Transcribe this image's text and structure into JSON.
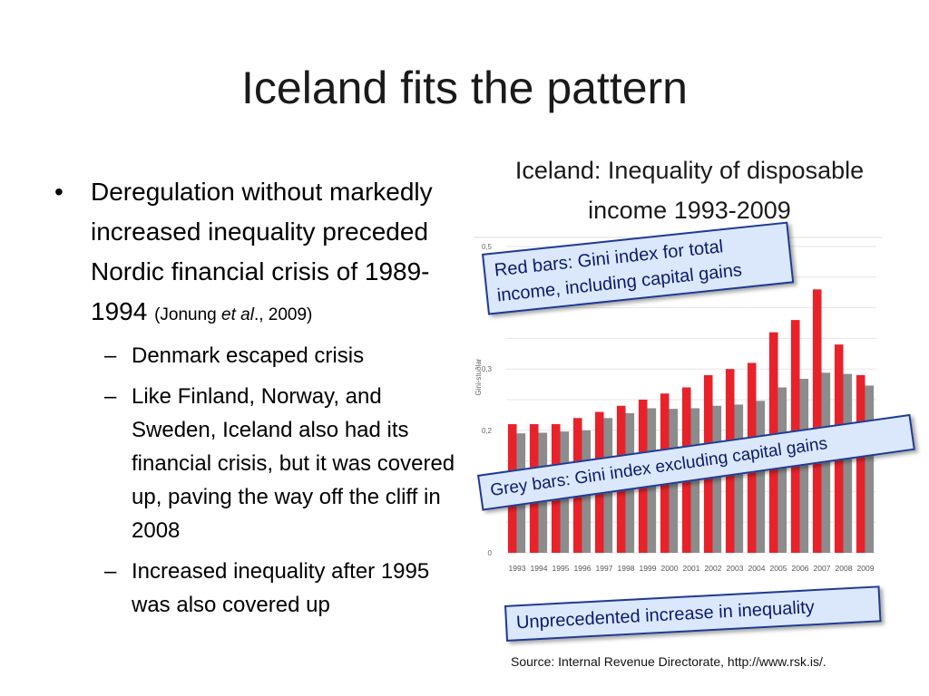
{
  "slide": {
    "title": "Iceland fits the pattern"
  },
  "bullets": {
    "main_text": "Deregulation without markedly increased inequality preceded Nordic financial crisis of 1989-1994",
    "citation_pre": "(Jonung ",
    "citation_italic": "et al",
    "citation_post": "., 2009)",
    "sub": [
      {
        "text": "Denmark escaped crisis"
      },
      {
        "text": "Like Finland, Norway, and Sweden, Iceland also had its financial crisis, but it was covered up, paving the way off the cliff in 2008"
      },
      {
        "text": "Increased inequality after 1995 was also covered up"
      }
    ]
  },
  "chart_title": "Iceland: Inequality of disposable income 1993-2009",
  "callouts": {
    "red": "Red bars: Gini index for total income, including capital gains",
    "grey": "Grey bars: Gini index excluding capital gains",
    "bottom": "Unprecedented increase in inequality"
  },
  "source": "Source: Internal Revenue Directorate, http://www.rsk.is/.",
  "chart_data": {
    "type": "bar",
    "categories": [
      "1993",
      "1994",
      "1995",
      "1996",
      "1997",
      "1998",
      "1999",
      "2000",
      "2001",
      "2002",
      "2003",
      "2004",
      "2005",
      "2006",
      "2007",
      "2008",
      "2009"
    ],
    "series": [
      {
        "values": [
          0.21,
          0.21,
          0.21,
          0.22,
          0.23,
          0.24,
          0.25,
          0.26,
          0.27,
          0.29,
          0.3,
          0.31,
          0.36,
          0.38,
          0.43,
          0.34,
          0.29
        ]
      },
      {
        "values": [
          0.195,
          0.196,
          0.198,
          0.2,
          0.22,
          0.228,
          0.236,
          0.235,
          0.236,
          0.24,
          0.242,
          0.248,
          0.27,
          0.284,
          0.294,
          0.292,
          0.273
        ]
      }
    ],
    "ylabel": "Gini-stuðlar",
    "ylim": [
      0,
      0.5
    ],
    "yticks": [
      {
        "value": 0,
        "label": "0"
      },
      {
        "value": 0.2,
        "label": "0,2"
      },
      {
        "value": 0.3,
        "label": "0,3"
      },
      {
        "value": 0.5,
        "label": "0,5"
      }
    ],
    "colors": {
      "red": "#e8222a",
      "grey": "#8c8c8c"
    },
    "grid": true
  }
}
